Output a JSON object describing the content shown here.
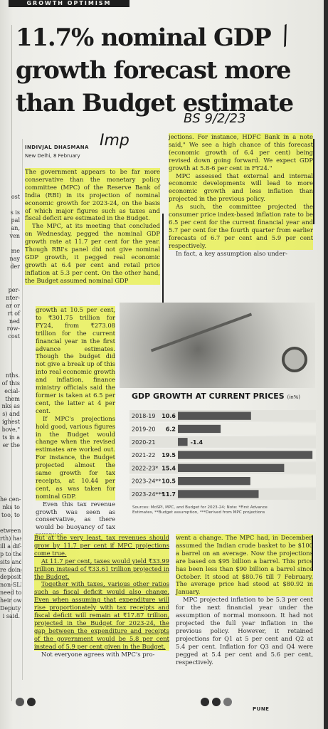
{
  "kicker": "GROWTH OPTIMISM",
  "headline": [
    "11.7% nominal GDP",
    "growth forecast more",
    "than Budget estimate"
  ],
  "byline": {
    "name": "INDIVJAL DHASMANA",
    "dateline": "New Delhi, 8 February"
  },
  "annotations": {
    "imp": "Imp",
    "date": "BS 9/2/23"
  },
  "left_edge": [
    "ost",
    "",
    "s is",
    "pal",
    "an,",
    "ven",
    "",
    "me",
    "nay",
    "der",
    "",
    "",
    "per-",
    "nter-",
    "ar or",
    "rt of",
    "ned",
    "row-",
    "cost",
    "",
    "",
    "",
    "",
    "nths.",
    "of this",
    "ecial-",
    "them",
    "nks as",
    "s) and",
    "ighest",
    "bove,\"",
    "ts in a",
    "er the",
    "",
    "",
    "",
    "",
    "",
    "",
    "he cen-",
    "nks to",
    "too, to",
    "",
    "etween",
    "rth) has",
    "ill a dif-",
    "p to the",
    "sits and",
    "re doing",
    "deposits",
    "non-SLR",
    "need to",
    "heir own",
    "Deputy",
    "i said."
  ],
  "col_left_top": [
    "The government appears to be far more conservative than the monetary policy committee (MPC) of the Reserve Bank of India (RBI) in its projection of nominal economic growth for 2023-24, on the basis of which major figures such as taxes and fiscal deficit are estimated in the Budget.",
    "The MPC, at its meeting that concluded on Wednesday, pegged the nominal GDP growth rate at 11.7 per cent for the year. Though RBI's panel did not give nominal GDP growth, it pegged real economic growth at 6.4 per cent and retail price inflation at 5.3 per cent. On the other hand, the Budget assumed nominal GDP"
  ],
  "col_narrow": [
    "growth at 10.5 per cent, to ₹301.75 trillion for FY24, from ₹273.08 trillion for the current financial year in the first advance estimates. Though the budget did not give a break up of this into real economic growth and inflation, finance ministry officials said the former is taken at 6.5 per cent, the latter at 4 per cent.",
    "If MPC's projections hold good, various figures in the Budget would change when the revised estimates are worked out. For instance, the Budget projected almost the same growth for tax receipts, at 10.44 per cent, as was taken for nominal GDP.",
    "Even this tax revenue growth was seen as conservative, as there would be buoyancy of tax revenues."
  ],
  "col_bottom_left": [
    "But at the very least, tax revenues should grow by 11.7 per cent if MPC projections come true.",
    "At 11.7 per cent, taxes would yield ₹33.99 trillion instead of ₹33.61 trillion projected in the Budget.",
    "Together with taxes, various other ratios such as fiscal deficit would also change. Even when assuming that expenditure will rise proportionately with tax receipts and fiscal deficit will remain at ₹17.87 trillion, projected in the Budget for 2023-24, the gap between the expenditure and receipts of the government would be 5.8 per cent instead of 5.9 per cent given in the Budget.",
    "Not everyone agrees with MPC's pro-"
  ],
  "col_right_top": [
    "jections. For instance, HDFC Bank in a note said,\" We see a high chance of this forecast (economic growth of 6.4 per cent) being revised down going forward. We expect GDP growth at 5.8-6 per cent in FY24.\"",
    "MPC assessed that external and internal economic developments will lead to more economic growth and less inflation than projected in the previous policy.",
    "As such, the committee projected the consumer price index-based inflation rate to be 6.5 per cent for the current financial year and 5.7 per cent for the fourth quarter from earlier forecasts of 6.7 per cent and 5.9 per cent respectively.",
    "In fact, a key assumption also under-"
  ],
  "col_bottom_right": [
    "went a change. The MPC had, in December, assumed the Indian crude basket to be $100 a barrel on an average. Now the projections are based on $95 billion a barrel. This price has been less than $90 billion a barrel since October. It stood at $80.76 till 7 February. The average price had stood at $80.92 in January.",
    "MPC projected inflation to be 5.3 per cent for the next financial year under the assumption of normal monsoon. It had not projected the full year inflation in the previous policy. However, it retained projections for Q1 at 5 per cent and Q2 at 5.4 per cent. Inflation for Q3 and Q4 were pegged at 5.4 per cent and 5.6 per cent, respectively."
  ],
  "chart_title": "GDP GROWTH AT CURRENT PRICES",
  "chart_unit": "(in%)",
  "chart_data": {
    "type": "bar",
    "orientation": "horizontal",
    "title": "GDP GROWTH AT CURRENT PRICES",
    "unit": "(in%)",
    "categories": [
      "2018-19",
      "2019-20",
      "2020-21",
      "2021-22",
      "2022-23*",
      "2023-24**",
      "2023-24***"
    ],
    "values": [
      10.6,
      6.2,
      -1.4,
      19.5,
      15.4,
      10.5,
      11.7
    ],
    "value_labels": [
      "10.6",
      "6.2",
      "-1.4",
      "19.5",
      "15.4",
      "10.5",
      "11.7"
    ],
    "bar_color": "#555555",
    "xlim": [
      -2,
      20
    ]
  },
  "chart_source": [
    "Sources: MoSPI, MPC, and Budget for 2023-24; Note: *First Advance",
    "Estimates, **Budget assumption, ***Derived from MPC projections"
  ],
  "footer": "PUNE"
}
